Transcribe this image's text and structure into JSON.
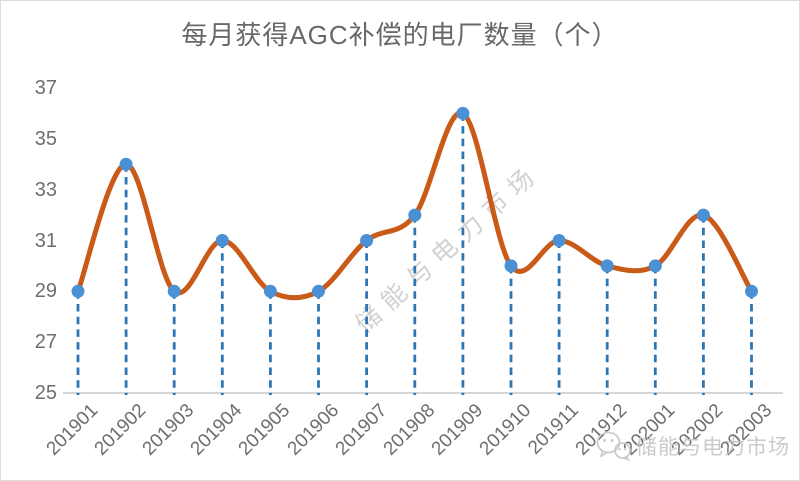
{
  "title": "每月获得AGC补偿的电厂数量（个）",
  "watermark": {
    "diagonal_text": "储能与电力市场",
    "footer_text": "储能与电力市场",
    "footer_logo": "wechat-logo"
  },
  "colors": {
    "line": "#c95a17",
    "marker": "#4a90d5",
    "drop_line": "#2e75b6",
    "axis_line": "#c8c8c8",
    "tick_label": "#6e6e6e",
    "title_text": "#686868",
    "watermark": "#cdcdcd",
    "frame_border": "#dcdcdc"
  },
  "chart_data": {
    "type": "line",
    "smooth": true,
    "title": "每月获得AGC补偿的电厂数量（个）",
    "categories": [
      "201901",
      "201902",
      "201903",
      "201904",
      "201905",
      "201906",
      "201907",
      "201908",
      "201909",
      "201910",
      "201911",
      "201912",
      "202001",
      "202002",
      "202003"
    ],
    "values": [
      29,
      34,
      29,
      31,
      29,
      29,
      31,
      32,
      36,
      30,
      31,
      30,
      30,
      32,
      29
    ],
    "xlabel": "",
    "ylabel": "",
    "ylim": [
      25,
      37
    ],
    "yticks": [
      25,
      27,
      29,
      31,
      33,
      35,
      37
    ],
    "grid": false,
    "legend": "none",
    "marker_style": "circle",
    "drop_lines": "dashed-vertical"
  }
}
